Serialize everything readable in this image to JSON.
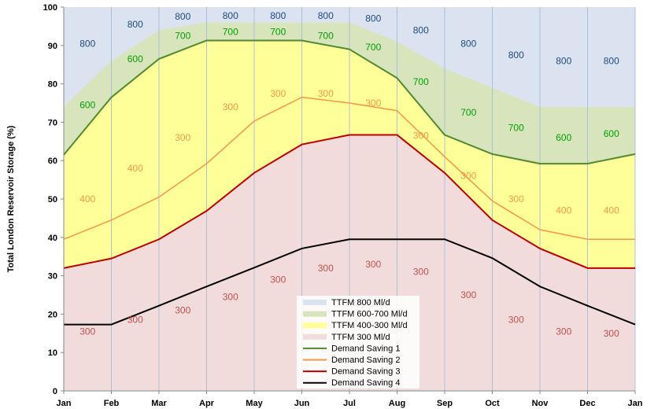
{
  "chart_data": {
    "type": "area",
    "ylabel": "Total London Reservoir Storage (%)",
    "xlabel": "",
    "ylim": [
      0,
      100
    ],
    "yticks": [
      0,
      10,
      20,
      30,
      40,
      50,
      60,
      70,
      80,
      90,
      100
    ],
    "categories": [
      "Jan",
      "Feb",
      "Mar",
      "Apr",
      "May",
      "Jun",
      "Jul",
      "Aug",
      "Sep",
      "Oct",
      "Nov",
      "Dec",
      "Jan"
    ],
    "grid": "vertical",
    "legend_position": "bottom-center",
    "zones": [
      {
        "name": "TTFM 800 Ml/d",
        "color": "#dce3f0",
        "upper": [
          100,
          100,
          100,
          100,
          100,
          100,
          100,
          100,
          100,
          100,
          100,
          100,
          100
        ]
      },
      {
        "name": "TTFM 600-700 Ml/d",
        "color": "#d7e4bc",
        "upper": [
          74,
          86,
          94,
          96,
          96,
          96,
          96,
          91,
          84,
          79,
          74,
          74,
          74
        ]
      },
      {
        "name": "TTFM 400-300 Ml/d",
        "color": "#ffff99",
        "upper": [
          61.5,
          76.5,
          86.5,
          91.3,
          91.3,
          91.3,
          89,
          81.5,
          66.7,
          61.7,
          59.2,
          59.2,
          61.7
        ]
      },
      {
        "name": "TTFM 300 Ml/d",
        "color": "#f2dcdb",
        "upper": [
          32,
          34.5,
          39.5,
          46.9,
          56.8,
          64.2,
          66.7,
          66.7,
          56.8,
          44.5,
          37.1,
          32,
          32
        ]
      }
    ],
    "series": [
      {
        "name": "Demand Saving 1",
        "color": "#4f8a2e",
        "values": [
          61.5,
          76.5,
          86.5,
          91.3,
          91.3,
          91.3,
          89,
          81.5,
          66.7,
          61.7,
          59.2,
          59.2,
          61.7
        ]
      },
      {
        "name": "Demand Saving 2",
        "color": "#f79646",
        "values": [
          39.5,
          44.5,
          50.5,
          59.2,
          70.3,
          76.5,
          75,
          73,
          61,
          49.5,
          42,
          39.5,
          39.5
        ]
      },
      {
        "name": "Demand Saving 3",
        "color": "#c00000",
        "values": [
          32,
          34.5,
          39.5,
          46.9,
          56.8,
          64.2,
          66.7,
          66.7,
          56.8,
          44.5,
          37.1,
          32,
          32
        ]
      },
      {
        "name": "Demand Saving 4",
        "color": "#000000",
        "values": [
          17.3,
          17.3,
          22.2,
          27.2,
          32.1,
          37.1,
          39.5,
          39.5,
          39.5,
          34.6,
          27.2,
          22.2,
          17.3
        ]
      }
    ],
    "annotations": [
      {
        "text": "800",
        "x": 0.5,
        "y": 90.5,
        "color": "#1f497d"
      },
      {
        "text": "800",
        "x": 1.5,
        "y": 95.5,
        "color": "#1f497d"
      },
      {
        "text": "800",
        "x": 2.5,
        "y": 97.5,
        "color": "#1f497d"
      },
      {
        "text": "800",
        "x": 3.5,
        "y": 97.7,
        "color": "#1f497d"
      },
      {
        "text": "800",
        "x": 4.5,
        "y": 97.7,
        "color": "#1f497d"
      },
      {
        "text": "800",
        "x": 5.5,
        "y": 97.7,
        "color": "#1f497d"
      },
      {
        "text": "800",
        "x": 6.5,
        "y": 97,
        "color": "#1f497d"
      },
      {
        "text": "800",
        "x": 7.5,
        "y": 94,
        "color": "#1f497d"
      },
      {
        "text": "800",
        "x": 8.5,
        "y": 90.5,
        "color": "#1f497d"
      },
      {
        "text": "800",
        "x": 9.5,
        "y": 87.5,
        "color": "#1f497d"
      },
      {
        "text": "800",
        "x": 10.5,
        "y": 86,
        "color": "#1f497d"
      },
      {
        "text": "800",
        "x": 11.5,
        "y": 86,
        "color": "#1f497d"
      },
      {
        "text": "600",
        "x": 0.5,
        "y": 74.5,
        "color": "#00a000"
      },
      {
        "text": "600",
        "x": 1.5,
        "y": 86.5,
        "color": "#00a000"
      },
      {
        "text": "700",
        "x": 2.5,
        "y": 92.5,
        "color": "#00a000"
      },
      {
        "text": "700",
        "x": 3.5,
        "y": 93.5,
        "color": "#00a000"
      },
      {
        "text": "700",
        "x": 4.5,
        "y": 93.5,
        "color": "#00a000"
      },
      {
        "text": "700",
        "x": 5.5,
        "y": 92.5,
        "color": "#00a000"
      },
      {
        "text": "700",
        "x": 6.5,
        "y": 89.5,
        "color": "#00a000"
      },
      {
        "text": "700",
        "x": 7.5,
        "y": 80.5,
        "color": "#00a000"
      },
      {
        "text": "700",
        "x": 8.5,
        "y": 72.5,
        "color": "#00a000"
      },
      {
        "text": "700",
        "x": 9.5,
        "y": 68.5,
        "color": "#00a000"
      },
      {
        "text": "600",
        "x": 10.5,
        "y": 66,
        "color": "#00a000"
      },
      {
        "text": "600",
        "x": 11.5,
        "y": 67,
        "color": "#00a000"
      },
      {
        "text": "400",
        "x": 0.5,
        "y": 50,
        "color": "#f79646"
      },
      {
        "text": "400",
        "x": 1.5,
        "y": 58,
        "color": "#f79646"
      },
      {
        "text": "300",
        "x": 2.5,
        "y": 66,
        "color": "#f79646"
      },
      {
        "text": "300",
        "x": 3.5,
        "y": 74,
        "color": "#f79646"
      },
      {
        "text": "300",
        "x": 4.5,
        "y": 77.5,
        "color": "#f79646"
      },
      {
        "text": "300",
        "x": 5.5,
        "y": 77.5,
        "color": "#f79646"
      },
      {
        "text": "300",
        "x": 6.5,
        "y": 75,
        "color": "#f79646"
      },
      {
        "text": "300",
        "x": 7.5,
        "y": 66.5,
        "color": "#f79646"
      },
      {
        "text": "300",
        "x": 8.5,
        "y": 56,
        "color": "#f79646"
      },
      {
        "text": "300",
        "x": 9.5,
        "y": 50,
        "color": "#f79646"
      },
      {
        "text": "400",
        "x": 10.5,
        "y": 47,
        "color": "#f79646"
      },
      {
        "text": "400",
        "x": 11.5,
        "y": 47,
        "color": "#f79646"
      },
      {
        "text": "300",
        "x": 0.5,
        "y": 15.5,
        "color": "#c0504d"
      },
      {
        "text": "300",
        "x": 1.5,
        "y": 18.5,
        "color": "#c0504d"
      },
      {
        "text": "300",
        "x": 2.5,
        "y": 21,
        "color": "#c0504d"
      },
      {
        "text": "300",
        "x": 3.5,
        "y": 24.5,
        "color": "#c0504d"
      },
      {
        "text": "300",
        "x": 4.5,
        "y": 29,
        "color": "#c0504d"
      },
      {
        "text": "300",
        "x": 5.5,
        "y": 32,
        "color": "#c0504d"
      },
      {
        "text": "300",
        "x": 6.5,
        "y": 33,
        "color": "#c0504d"
      },
      {
        "text": "300",
        "x": 7.5,
        "y": 31,
        "color": "#c0504d"
      },
      {
        "text": "300",
        "x": 8.5,
        "y": 25,
        "color": "#c0504d"
      },
      {
        "text": "300",
        "x": 9.5,
        "y": 18.5,
        "color": "#c0504d"
      },
      {
        "text": "300",
        "x": 10.5,
        "y": 15.5,
        "color": "#c0504d"
      },
      {
        "text": "300",
        "x": 11.5,
        "y": 15,
        "color": "#c0504d"
      }
    ]
  }
}
